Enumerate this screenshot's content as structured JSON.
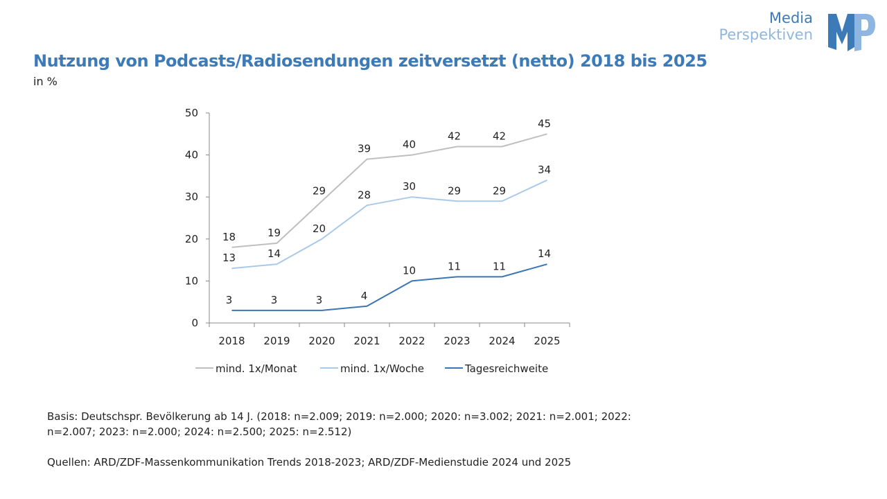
{
  "header": {
    "title": "Nutzung von Podcasts/Radiosendungen zeitversetzt (netto) 2018 bis 2025",
    "subtitle": "in %",
    "logo": {
      "line1": "Media",
      "line2": "Perspektiven",
      "mark": "MP"
    }
  },
  "chart_data": {
    "type": "line",
    "categories": [
      "2018",
      "2019",
      "2020",
      "2021",
      "2022",
      "2023",
      "2024",
      "2025"
    ],
    "ylim": [
      0,
      50
    ],
    "yticks": [
      0,
      10,
      20,
      30,
      40,
      50
    ],
    "grid": false,
    "legend": "bottom",
    "series": [
      {
        "name": "mind. 1x/Monat",
        "color": "#bfbfbf",
        "values": [
          18,
          19,
          29,
          39,
          40,
          42,
          42,
          45
        ]
      },
      {
        "name": "mind. 1x/Woche",
        "color": "#a9c9ea",
        "values": [
          13,
          14,
          20,
          28,
          30,
          29,
          29,
          34
        ]
      },
      {
        "name": "Tagesreichweite",
        "color": "#3a75b5",
        "values": [
          3,
          3,
          3,
          4,
          10,
          11,
          11,
          14
        ]
      }
    ]
  },
  "footer": {
    "basis": "Basis:  Deutschspr. Bevölkerung ab 14 J. (2018: n=2.009; 2019: n=2.000; 2020: n=3.002; 2021: n=2.001; 2022: n=2.007; 2023: n=2.000; 2024: n=2.500; 2025: n=2.512)",
    "quellen": "Quellen: ARD/ZDF-Massenkommunikation Trends 2018-2023; ARD/ZDF-Medienstudie 2024 und 2025"
  }
}
